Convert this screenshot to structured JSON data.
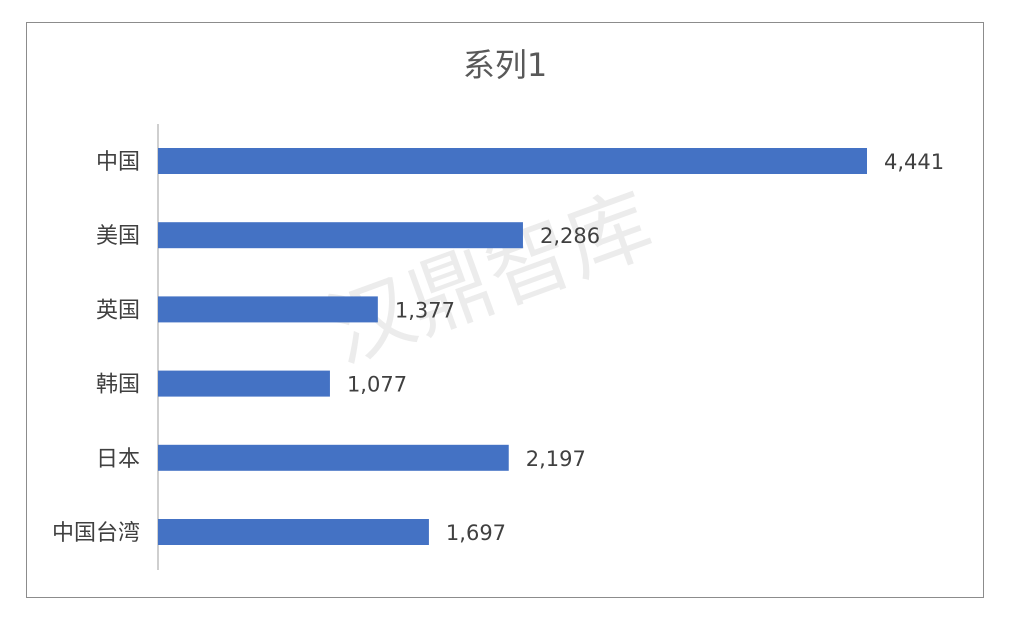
{
  "watermark": "汉鼎智库",
  "chart_data": {
    "type": "bar",
    "orientation": "horizontal",
    "title": "系列1",
    "categories": [
      "中国",
      "美国",
      "英国",
      "韩国",
      "日本",
      "中国台湾"
    ],
    "series": [
      {
        "values": [
          4441,
          2286,
          1377,
          1077,
          2197,
          1697
        ]
      }
    ],
    "value_labels": [
      "4,441",
      "2,286",
      "1,377",
      "1,077",
      "2,197",
      "1,697"
    ],
    "xlim": [
      0,
      4441
    ],
    "grid": false,
    "legend": "none",
    "colors": {
      "bar": "#4472C4",
      "axis": "#BFBFBF",
      "frame": "#8C8C8C"
    }
  }
}
